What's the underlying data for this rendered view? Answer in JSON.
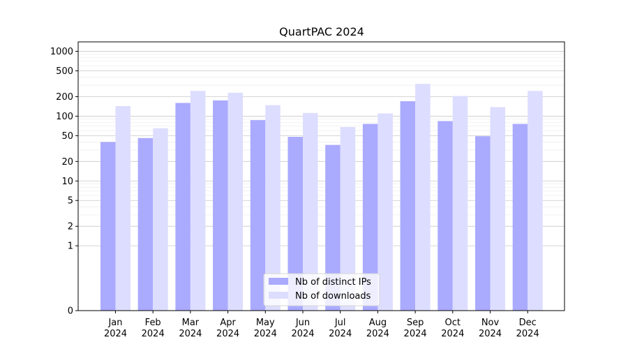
{
  "chart_data": {
    "type": "bar",
    "title": "QuartPAC 2024",
    "xlabel": "",
    "ylabel": "",
    "yscale": "symlog",
    "ylim": [
      0,
      1400
    ],
    "yticks": [
      0,
      1,
      2,
      5,
      10,
      20,
      50,
      100,
      200,
      500,
      1000
    ],
    "ytick_labels": [
      "0",
      "1",
      "2",
      "5",
      "10",
      "20",
      "50",
      "100",
      "200",
      "500",
      "1000"
    ],
    "grid": true,
    "legend_position": "bottom-center",
    "categories": [
      {
        "month": "Jan",
        "year": "2024"
      },
      {
        "month": "Feb",
        "year": "2024"
      },
      {
        "month": "Mar",
        "year": "2024"
      },
      {
        "month": "Apr",
        "year": "2024"
      },
      {
        "month": "May",
        "year": "2024"
      },
      {
        "month": "Jun",
        "year": "2024"
      },
      {
        "month": "Jul",
        "year": "2024"
      },
      {
        "month": "Aug",
        "year": "2024"
      },
      {
        "month": "Sep",
        "year": "2024"
      },
      {
        "month": "Oct",
        "year": "2024"
      },
      {
        "month": "Nov",
        "year": "2024"
      },
      {
        "month": "Dec",
        "year": "2024"
      }
    ],
    "series": [
      {
        "name": "Nb of distinct IPs",
        "color": "#aaaaff",
        "values": [
          40,
          46,
          160,
          175,
          87,
          48,
          36,
          76,
          170,
          84,
          49,
          76
        ]
      },
      {
        "name": "Nb of downloads",
        "color": "#ddddff",
        "values": [
          143,
          65,
          245,
          230,
          148,
          112,
          68,
          110,
          315,
          205,
          138,
          245
        ]
      }
    ]
  }
}
